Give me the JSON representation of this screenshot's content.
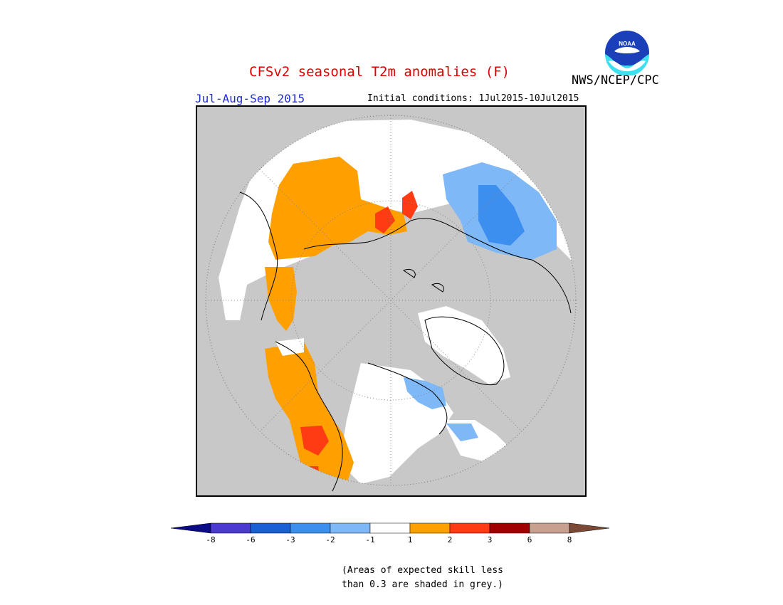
{
  "title": "CFSv2 seasonal T2m anomalies (F)",
  "agency": "NWS/NCEP/CPC",
  "logo_text": "NOAA",
  "season": "Jul-Aug-Sep 2015",
  "initial_conditions": {
    "label": "Initial conditions:",
    "value": "1Jul2015-10Jul2015"
  },
  "colors": {
    "title": "#e00000",
    "season": "#1d2ad6",
    "skill_grey": "#c8c8c8",
    "logo_blue": "#1a3fb8",
    "logo_cyan": "#3ee0f0"
  },
  "map": {
    "projection": "north-polar-stereographic",
    "region": "Northern Hemisphere (Arctic)",
    "dominant_signals": [
      {
        "region": "Eastern Europe / Western Russia",
        "category": "1 to 2",
        "color": "#ff9f00"
      },
      {
        "region": "Western North America",
        "category": "1 to 2",
        "color": "#ff9f00"
      },
      {
        "region": "Pacific Northwest",
        "category": "2 to 3",
        "color": "#ff3b14"
      },
      {
        "region": "Siberia / Russian Far East",
        "category": "-2 to -1",
        "color": "#7fb8f7"
      },
      {
        "region": "Northern Canada / Greenland fringes",
        "category": "-1 to 1",
        "color": "#ffffff"
      }
    ]
  },
  "legend": {
    "bins": [
      {
        "color": "#0b0b88",
        "range": "< -8"
      },
      {
        "color": "#4a3ad2",
        "range": "-8 to -6"
      },
      {
        "color": "#1b5fd6",
        "range": "-6 to -3"
      },
      {
        "color": "#3d8fef",
        "range": "-3 to -2"
      },
      {
        "color": "#7fb8f7",
        "range": "-2 to -1"
      },
      {
        "color": "#ffffff",
        "range": "-1 to 1"
      },
      {
        "color": "#ff9f00",
        "range": "1 to 2"
      },
      {
        "color": "#ff3b14",
        "range": "2 to 3"
      },
      {
        "color": "#a00000",
        "range": "3 to 6"
      },
      {
        "color": "#c8a090",
        "range": "6 to 8"
      },
      {
        "color": "#7a4a36",
        "range": "> 8"
      }
    ],
    "ticks": [
      "-8",
      "-6",
      "-3",
      "-2",
      "-1",
      "1",
      "2",
      "3",
      "6",
      "8"
    ]
  },
  "note": {
    "line1": "(Areas of expected skill less",
    "line2": "than 0.3 are shaded in grey.)"
  }
}
